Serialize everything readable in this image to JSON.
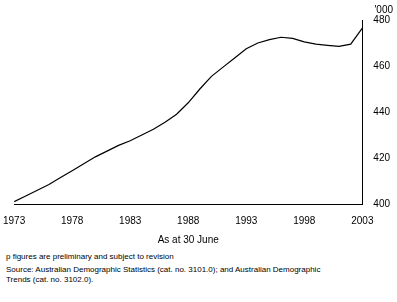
{
  "chart_data": {
    "type": "line",
    "xlabel": "As at 30 June",
    "ylabel": "'000",
    "annotations": [
      "p figures are preliminary and subject to revision",
      "Source: Australian Demographic Statistics (cat. no. 3101.0); and Australian Demographic\nTrends (cat. no. 3102.0)."
    ],
    "x": [
      1973,
      1974,
      1975,
      1976,
      1977,
      1978,
      1979,
      1980,
      1981,
      1982,
      1983,
      1984,
      1985,
      1986,
      1987,
      1988,
      1989,
      1990,
      1991,
      1992,
      1993,
      1994,
      1995,
      1996,
      1997,
      1998,
      1999,
      2000,
      2001,
      2002,
      2003
    ],
    "values": [
      401.0,
      403.5,
      406.0,
      408.5,
      411.5,
      414.5,
      417.5,
      420.5,
      423.0,
      425.5,
      427.5,
      430.0,
      432.5,
      435.5,
      439.0,
      444.0,
      450.0,
      455.5,
      459.5,
      463.5,
      467.5,
      470.0,
      471.5,
      472.5,
      472.0,
      470.5,
      469.5,
      469.0,
      468.5,
      469.5,
      476.5
    ],
    "color": "#000000",
    "xlim": [
      1973,
      2003
    ],
    "ylim": [
      400,
      480
    ],
    "xticks": [
      1973,
      1978,
      1983,
      1988,
      1993,
      1998,
      2003
    ],
    "yticks": [
      400,
      420,
      440,
      460,
      480
    ],
    "grid": false
  }
}
